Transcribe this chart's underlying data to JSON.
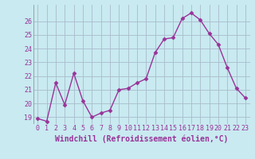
{
  "x": [
    0,
    1,
    2,
    3,
    4,
    5,
    6,
    7,
    8,
    9,
    10,
    11,
    12,
    13,
    14,
    15,
    16,
    17,
    18,
    19,
    20,
    21,
    22,
    23
  ],
  "y": [
    18.9,
    18.7,
    21.5,
    19.9,
    22.2,
    20.2,
    19.0,
    19.3,
    19.5,
    21.0,
    21.1,
    21.5,
    21.8,
    23.7,
    24.7,
    24.8,
    26.2,
    26.6,
    26.1,
    25.1,
    24.3,
    22.6,
    21.1,
    20.4
  ],
  "line_color": "#993399",
  "marker": "D",
  "marker_size": 2.5,
  "line_width": 1.0,
  "bg_color": "#c8eaf0",
  "grid_color": "#aabbcc",
  "xlabel": "Windchill (Refroidissement éolien,°C)",
  "xlabel_color": "#993399",
  "xlabel_fontsize": 7,
  "tick_color": "#993399",
  "tick_fontsize": 6,
  "ylim": [
    18.5,
    27.2
  ],
  "yticks": [
    19,
    20,
    21,
    22,
    23,
    24,
    25,
    26
  ],
  "xtick_labels": [
    "0",
    "1",
    "2",
    "3",
    "4",
    "5",
    "6",
    "7",
    "8",
    "9",
    "10",
    "11",
    "12",
    "13",
    "14",
    "15",
    "16",
    "17",
    "18",
    "19",
    "20",
    "21",
    "22",
    "23"
  ]
}
